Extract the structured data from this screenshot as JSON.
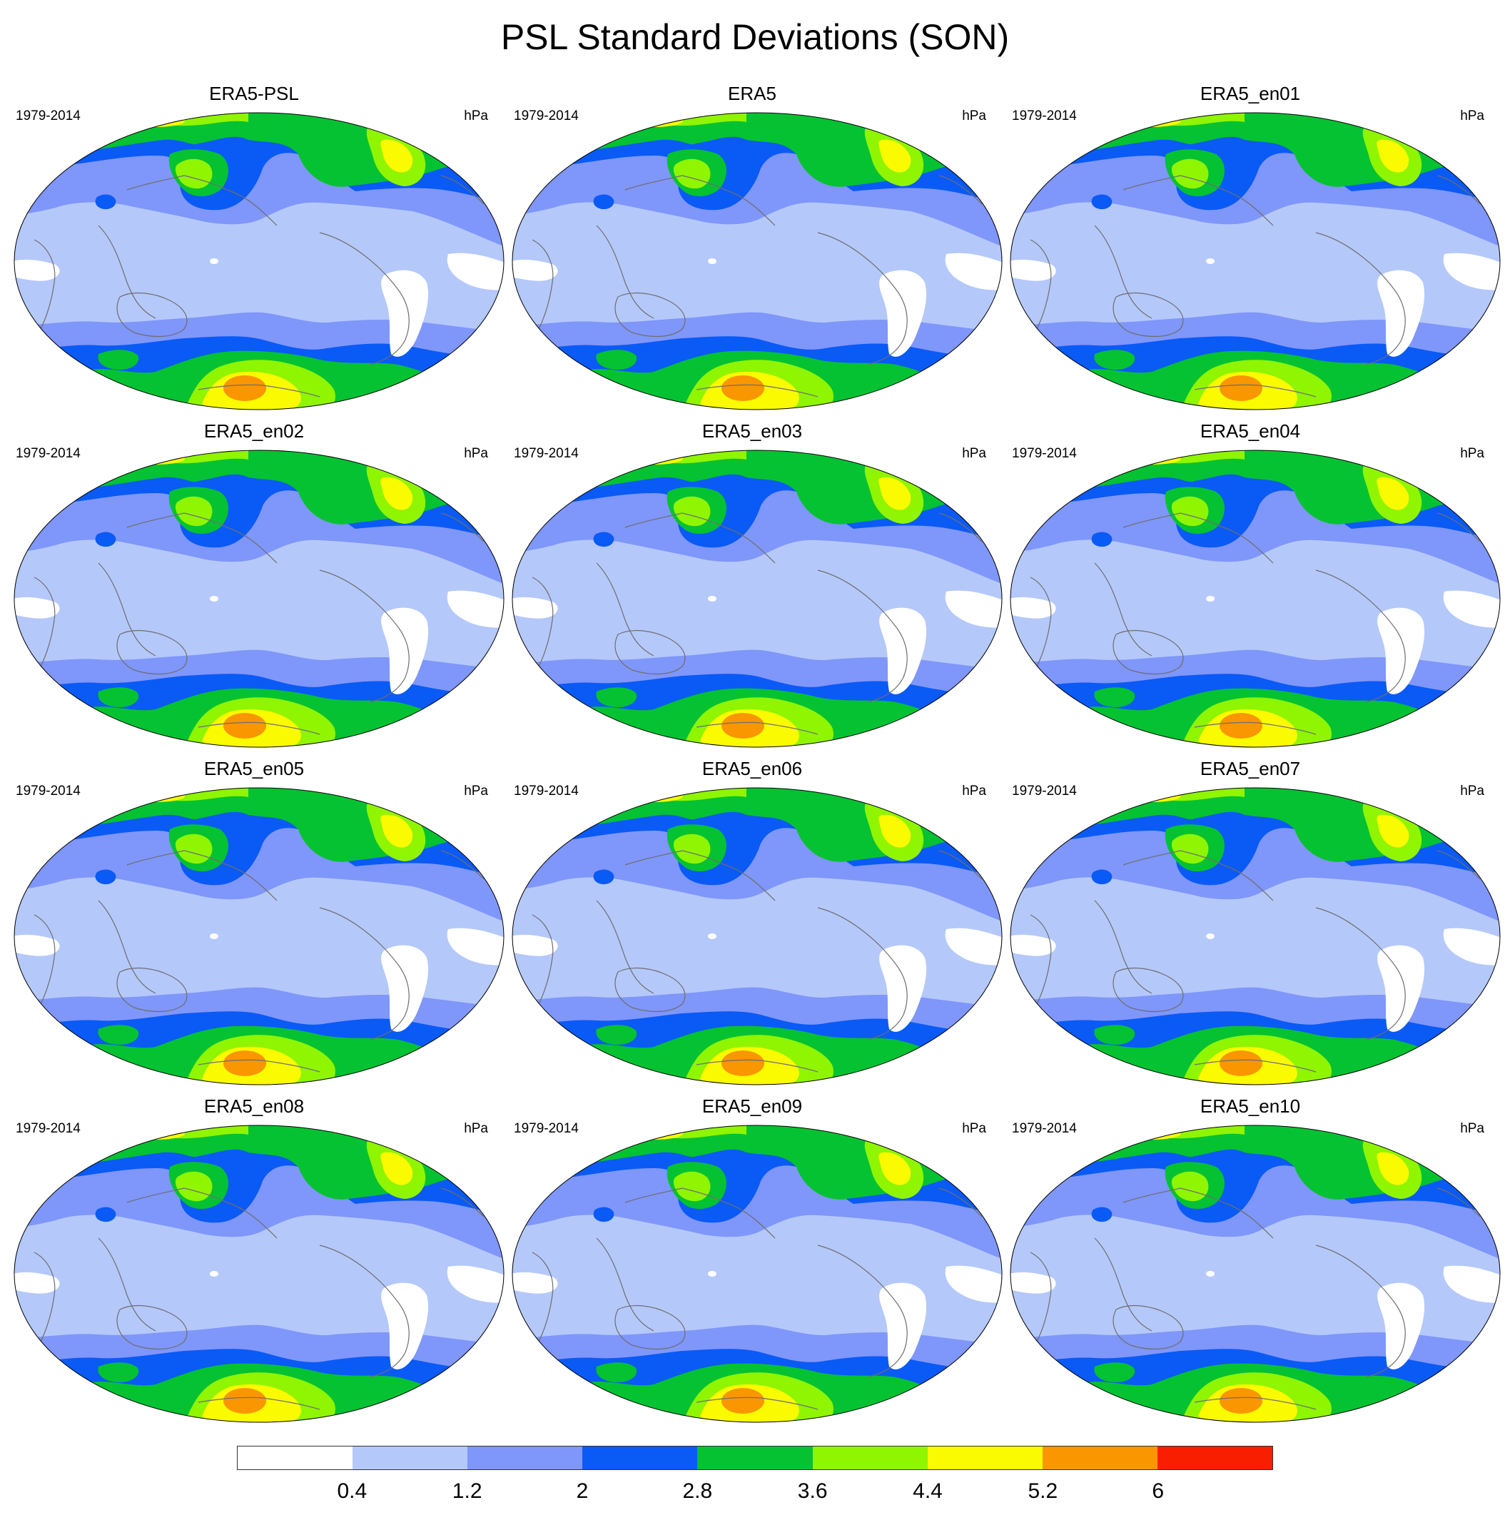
{
  "figure": {
    "title": "PSL Standard Deviations (SON)",
    "units": "hPa",
    "period": "1979-2014"
  },
  "panels": [
    {
      "title": "ERA5-PSL",
      "period": "1979-2014",
      "units": "hPa"
    },
    {
      "title": "ERA5",
      "period": "1979-2014",
      "units": "hPa"
    },
    {
      "title": "ERA5_en01",
      "period": "1979-2014",
      "units": "hPa"
    },
    {
      "title": "ERA5_en02",
      "period": "1979-2014",
      "units": "hPa"
    },
    {
      "title": "ERA5_en03",
      "period": "1979-2014",
      "units": "hPa"
    },
    {
      "title": "ERA5_en04",
      "period": "1979-2014",
      "units": "hPa"
    },
    {
      "title": "ERA5_en05",
      "period": "1979-2014",
      "units": "hPa"
    },
    {
      "title": "ERA5_en06",
      "period": "1979-2014",
      "units": "hPa"
    },
    {
      "title": "ERA5_en07",
      "period": "1979-2014",
      "units": "hPa"
    },
    {
      "title": "ERA5_en08",
      "period": "1979-2014",
      "units": "hPa"
    },
    {
      "title": "ERA5_en09",
      "period": "1979-2014",
      "units": "hPa"
    },
    {
      "title": "ERA5_en10",
      "period": "1979-2014",
      "units": "hPa"
    }
  ],
  "colorbar": {
    "labels": [
      "0.4",
      "1.2",
      "2",
      "2.8",
      "3.6",
      "4.4",
      "5.2",
      "6"
    ],
    "colors": [
      "#ffffff",
      "#b4c8fa",
      "#7f96fa",
      "#0a5af5",
      "#05c232",
      "#8ff500",
      "#fafa00",
      "#fa9600",
      "#fa1e00"
    ]
  },
  "map_colors": {
    "background": "#b4c8fa",
    "band1": "#7f96fa",
    "band2": "#0a5af5",
    "band3": "#05c232",
    "band4": "#8ff500",
    "band5": "#fafa00",
    "band6": "#fa9600",
    "low": "#ffffff",
    "coast": "#6e6e6e"
  }
}
